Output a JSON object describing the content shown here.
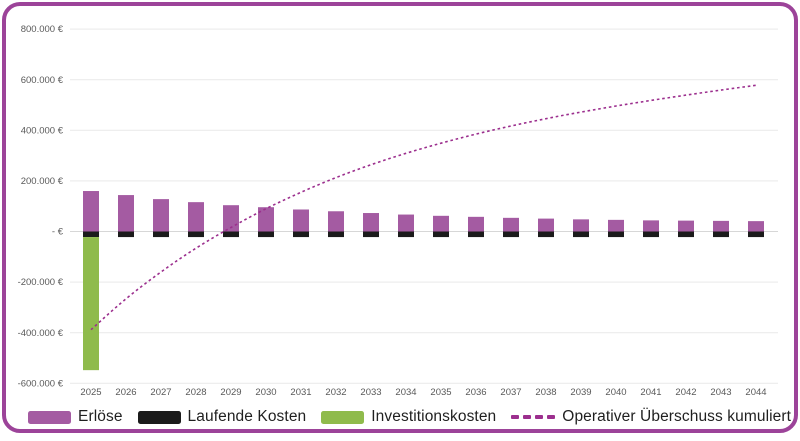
{
  "card": {
    "background": "#ffffff",
    "border_color": "#9c4399"
  },
  "chart_data": {
    "type": "bar",
    "subtype": "stacked-bars-with-dashed-cumulative-line",
    "title": "",
    "xlabel": "",
    "ylabel": "",
    "grid": true,
    "legend_position": "bottom",
    "ylim": [
      -600000,
      800000
    ],
    "categories": [
      "2025",
      "2026",
      "2027",
      "2028",
      "2029",
      "2030",
      "2031",
      "2032",
      "2033",
      "2034",
      "2035",
      "2036",
      "2037",
      "2038",
      "2039",
      "2040",
      "2041",
      "2042",
      "2043",
      "2044"
    ],
    "series": [
      {
        "name": "Erlöse",
        "kind": "bar",
        "color": "#a45ba2",
        "values": [
          160000,
          144000,
          128000,
          116000,
          104000,
          96000,
          87000,
          80000,
          73000,
          67000,
          62000,
          58000,
          54000,
          51000,
          48000,
          46000,
          44000,
          43000,
          42000,
          41000
        ]
      },
      {
        "name": "Laufende Kosten",
        "kind": "bar",
        "color": "#1b1b1b",
        "values": [
          -22000,
          -22000,
          -22000,
          -22000,
          -22000,
          -22000,
          -22000,
          -22000,
          -22000,
          -22000,
          -22000,
          -22000,
          -22000,
          -22000,
          -22000,
          -22000,
          -22000,
          -22000,
          -22000,
          -22000
        ]
      },
      {
        "name": "Investitionskosten",
        "kind": "bar",
        "color": "#8fbb4c",
        "values": [
          -526000,
          0,
          0,
          0,
          0,
          0,
          0,
          0,
          0,
          0,
          0,
          0,
          0,
          0,
          0,
          0,
          0,
          0,
          0,
          0
        ]
      },
      {
        "name": "Operativer Überschuss kumuliert",
        "kind": "line",
        "dashed": true,
        "color": "#9c2f8e",
        "values": [
          -388000,
          -266000,
          -160000,
          -66000,
          16000,
          90000,
          155000,
          213000,
          264000,
          309000,
          349000,
          385000,
          417000,
          446000,
          472000,
          496000,
          518000,
          539000,
          559000,
          578000
        ]
      }
    ],
    "y_axis": {
      "ticks": [
        {
          "value": 800000,
          "label": "800.000 €"
        },
        {
          "value": 600000,
          "label": "600.000 €"
        },
        {
          "value": 400000,
          "label": "400.000 €"
        },
        {
          "value": 200000,
          "label": "200.000 €"
        },
        {
          "value": 0,
          "label": "- €"
        },
        {
          "value": -200000,
          "label": "-200.000 €"
        },
        {
          "value": -400000,
          "label": "-400.000 €"
        },
        {
          "value": -600000,
          "label": "-600.000 €"
        }
      ],
      "tick_color": "#595959",
      "grid_color": "#e9e9e9",
      "zero_line_color": "#d7d7d7"
    },
    "x_axis": {
      "labels": [
        "2025",
        "2026",
        "2027",
        "2028",
        "2029",
        "2030",
        "2031",
        "2032",
        "2033",
        "2034",
        "2035",
        "2036",
        "2037",
        "2038",
        "2039",
        "2040",
        "2041",
        "2042",
        "2043",
        "2044"
      ],
      "tick_color": "#595959"
    }
  },
  "legend": {
    "text_color": "#1f1f1f"
  }
}
